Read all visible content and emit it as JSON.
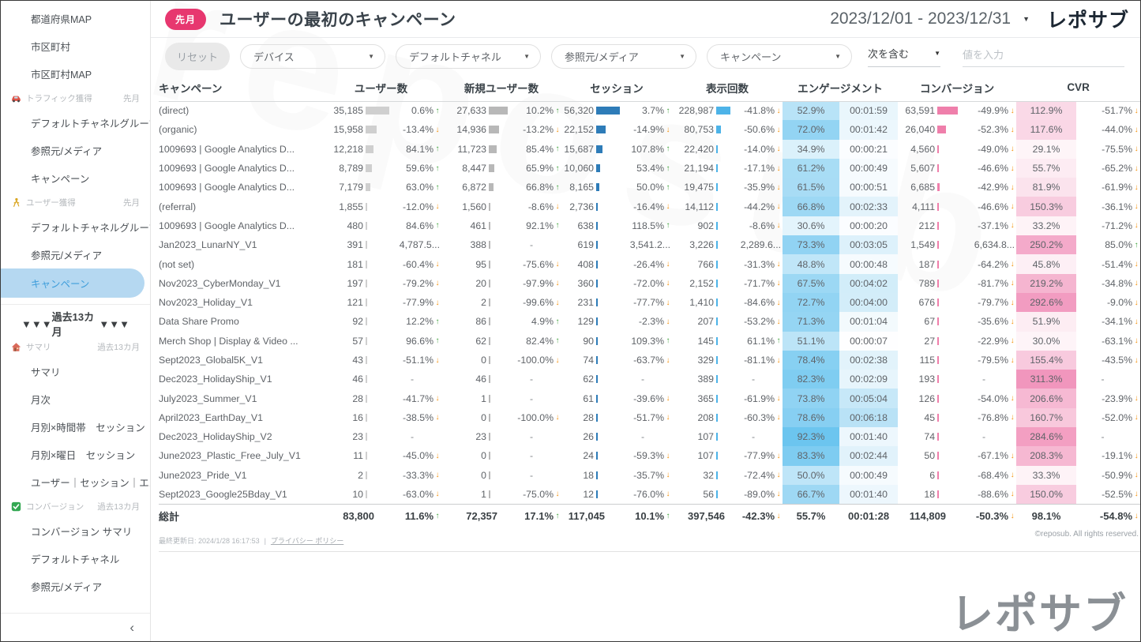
{
  "header": {
    "period_badge": "先月",
    "title": "ユーザーの最初のキャンペーン",
    "date_range": "2023/12/01 - 2023/12/31",
    "logo": "レポサブ"
  },
  "filters": {
    "reset_label": "リセット",
    "dropdowns": [
      "デバイス",
      "デフォルトチャネル",
      "参照元/メディア",
      "キャンペーン"
    ],
    "condition": "次を含む",
    "input_placeholder": "値を入力"
  },
  "sidebar": {
    "collapse": "‹",
    "items": [
      {
        "type": "item",
        "label": "都道府県MAP"
      },
      {
        "type": "item",
        "label": "市区町村"
      },
      {
        "type": "item",
        "label": "市区町村MAP"
      },
      {
        "type": "section",
        "icon": "car-icon",
        "label": "トラフィック獲得",
        "period": "先月"
      },
      {
        "type": "item",
        "label": "デフォルトチャネルグループ"
      },
      {
        "type": "item",
        "label": "参照元/メディア"
      },
      {
        "type": "item",
        "label": "キャンペーン"
      },
      {
        "type": "section",
        "icon": "person-icon",
        "label": "ユーザー獲得",
        "period": "先月"
      },
      {
        "type": "item",
        "label": "デフォルトチャネルグループ"
      },
      {
        "type": "item",
        "label": "参照元/メディア"
      },
      {
        "type": "item",
        "label": "キャンペーン",
        "selected": true
      },
      {
        "type": "divider"
      },
      {
        "type": "banner",
        "left": "▼▼▼",
        "label": "過去13カ月",
        "right": "▼▼▼"
      },
      {
        "type": "section",
        "icon": "house-icon",
        "label": "サマリ",
        "period": "過去13カ月"
      },
      {
        "type": "item",
        "label": "サマリ"
      },
      {
        "type": "item",
        "label": "月次"
      },
      {
        "type": "item",
        "label": "月別×時間帯　セッション"
      },
      {
        "type": "item",
        "label": "月別×曜日　セッション"
      },
      {
        "type": "item",
        "label": "ユーザー｜セッション｜エ..."
      },
      {
        "type": "section",
        "icon": "check-icon",
        "label": "コンバージョン",
        "period": "過去13カ月"
      },
      {
        "type": "item",
        "label": "コンバージョン サマリ"
      },
      {
        "type": "item",
        "label": "デフォルトチャネル"
      },
      {
        "type": "item",
        "label": "参照元/メディア"
      }
    ]
  },
  "table": {
    "columns": [
      {
        "label": "キャンペーン"
      },
      {
        "label": "ユーザー数"
      },
      {
        "label": "新規ユーザー数"
      },
      {
        "label": "セッション"
      },
      {
        "label": "表示回数"
      },
      {
        "label": "エンゲージメント"
      },
      {
        "label": "コンバージョン"
      },
      {
        "label": "CVR"
      }
    ],
    "rows": [
      {
        "campaign": "(direct)",
        "users": "35,185",
        "users_chg": "0.6%",
        "new_users": "27,633",
        "new_users_chg": "10.2%",
        "sessions": "56,320",
        "sessions_chg": "3.7%",
        "views": "228,987",
        "views_chg": "-41.8%",
        "eng_rate": "52.9%",
        "eng_time": "00:01:59",
        "conversions": "63,591",
        "conversions_chg": "-49.9%",
        "cvr": "112.9%",
        "cvr_chg": "-51.7%"
      },
      {
        "campaign": "(organic)",
        "users": "15,958",
        "users_chg": "-13.4%",
        "new_users": "14,936",
        "new_users_chg": "-13.2%",
        "sessions": "22,152",
        "sessions_chg": "-14.9%",
        "views": "80,753",
        "views_chg": "-50.6%",
        "eng_rate": "72.0%",
        "eng_time": "00:01:42",
        "conversions": "26,040",
        "conversions_chg": "-52.3%",
        "cvr": "117.6%",
        "cvr_chg": "-44.0%"
      },
      {
        "campaign": "1009693 | Google Analytics D...",
        "users": "12,218",
        "users_chg": "84.1%",
        "new_users": "11,723",
        "new_users_chg": "85.4%",
        "sessions": "15,687",
        "sessions_chg": "107.8%",
        "views": "22,420",
        "views_chg": "-14.0%",
        "eng_rate": "34.9%",
        "eng_time": "00:00:21",
        "conversions": "4,560",
        "conversions_chg": "-49.0%",
        "cvr": "29.1%",
        "cvr_chg": "-75.5%"
      },
      {
        "campaign": "1009693 | Google Analytics D...",
        "users": "8,789",
        "users_chg": "59.6%",
        "new_users": "8,447",
        "new_users_chg": "65.9%",
        "sessions": "10,060",
        "sessions_chg": "53.4%",
        "views": "21,194",
        "views_chg": "-17.1%",
        "eng_rate": "61.2%",
        "eng_time": "00:00:49",
        "conversions": "5,607",
        "conversions_chg": "-46.6%",
        "cvr": "55.7%",
        "cvr_chg": "-65.2%"
      },
      {
        "campaign": "1009693 | Google Analytics D...",
        "users": "7,179",
        "users_chg": "63.0%",
        "new_users": "6,872",
        "new_users_chg": "66.8%",
        "sessions": "8,165",
        "sessions_chg": "50.0%",
        "views": "19,475",
        "views_chg": "-35.9%",
        "eng_rate": "61.5%",
        "eng_time": "00:00:51",
        "conversions": "6,685",
        "conversions_chg": "-42.9%",
        "cvr": "81.9%",
        "cvr_chg": "-61.9%"
      },
      {
        "campaign": "(referral)",
        "users": "1,855",
        "users_chg": "-12.0%",
        "new_users": "1,560",
        "new_users_chg": "-8.6%",
        "sessions": "2,736",
        "sessions_chg": "-16.4%",
        "views": "14,112",
        "views_chg": "-44.2%",
        "eng_rate": "66.8%",
        "eng_time": "00:02:33",
        "conversions": "4,111",
        "conversions_chg": "-46.6%",
        "cvr": "150.3%",
        "cvr_chg": "-36.1%"
      },
      {
        "campaign": "1009693 | Google Analytics D...",
        "users": "480",
        "users_chg": "84.6%",
        "new_users": "461",
        "new_users_chg": "92.1%",
        "sessions": "638",
        "sessions_chg": "118.5%",
        "views": "902",
        "views_chg": "-8.6%",
        "eng_rate": "30.6%",
        "eng_time": "00:00:20",
        "conversions": "212",
        "conversions_chg": "-37.1%",
        "cvr": "33.2%",
        "cvr_chg": "-71.2%"
      },
      {
        "campaign": "Jan2023_LunarNY_V1",
        "users": "391",
        "users_chg": "4,787.5...",
        "new_users": "388",
        "new_users_chg": "-",
        "sessions": "619",
        "sessions_chg": "3,541.2...",
        "views": "3,226",
        "views_chg": "2,289.6...",
        "eng_rate": "73.3%",
        "eng_time": "00:03:05",
        "conversions": "1,549",
        "conversions_chg": "6,634.8...",
        "cvr": "250.2%",
        "cvr_chg": "85.0%"
      },
      {
        "campaign": "(not set)",
        "users": "181",
        "users_chg": "-60.4%",
        "new_users": "95",
        "new_users_chg": "-75.6%",
        "sessions": "408",
        "sessions_chg": "-26.4%",
        "views": "766",
        "views_chg": "-31.3%",
        "eng_rate": "48.8%",
        "eng_time": "00:00:48",
        "conversions": "187",
        "conversions_chg": "-64.2%",
        "cvr": "45.8%",
        "cvr_chg": "-51.4%"
      },
      {
        "campaign": "Nov2023_CyberMonday_V1",
        "users": "197",
        "users_chg": "-79.2%",
        "new_users": "20",
        "new_users_chg": "-97.9%",
        "sessions": "360",
        "sessions_chg": "-72.0%",
        "views": "2,152",
        "views_chg": "-71.7%",
        "eng_rate": "67.5%",
        "eng_time": "00:04:02",
        "conversions": "789",
        "conversions_chg": "-81.7%",
        "cvr": "219.2%",
        "cvr_chg": "-34.8%"
      },
      {
        "campaign": "Nov2023_Holiday_V1",
        "users": "121",
        "users_chg": "-77.9%",
        "new_users": "2",
        "new_users_chg": "-99.6%",
        "sessions": "231",
        "sessions_chg": "-77.7%",
        "views": "1,410",
        "views_chg": "-84.6%",
        "eng_rate": "72.7%",
        "eng_time": "00:04:00",
        "conversions": "676",
        "conversions_chg": "-79.7%",
        "cvr": "292.6%",
        "cvr_chg": "-9.0%"
      },
      {
        "campaign": "Data Share Promo",
        "users": "92",
        "users_chg": "12.2%",
        "new_users": "86",
        "new_users_chg": "4.9%",
        "sessions": "129",
        "sessions_chg": "-2.3%",
        "views": "207",
        "views_chg": "-53.2%",
        "eng_rate": "71.3%",
        "eng_time": "00:01:04",
        "conversions": "67",
        "conversions_chg": "-35.6%",
        "cvr": "51.9%",
        "cvr_chg": "-34.1%"
      },
      {
        "campaign": "Merch Shop | Display & Video ...",
        "users": "57",
        "users_chg": "96.6%",
        "new_users": "62",
        "new_users_chg": "82.4%",
        "sessions": "90",
        "sessions_chg": "109.3%",
        "views": "145",
        "views_chg": "61.1%",
        "eng_rate": "51.1%",
        "eng_time": "00:00:07",
        "conversions": "27",
        "conversions_chg": "-22.9%",
        "cvr": "30.0%",
        "cvr_chg": "-63.1%"
      },
      {
        "campaign": "Sept2023_Global5K_V1",
        "users": "43",
        "users_chg": "-51.1%",
        "new_users": "0",
        "new_users_chg": "-100.0%",
        "sessions": "74",
        "sessions_chg": "-63.7%",
        "views": "329",
        "views_chg": "-81.1%",
        "eng_rate": "78.4%",
        "eng_time": "00:02:38",
        "conversions": "115",
        "conversions_chg": "-79.5%",
        "cvr": "155.4%",
        "cvr_chg": "-43.5%"
      },
      {
        "campaign": "Dec2023_HolidayShip_V1",
        "users": "46",
        "users_chg": "-",
        "new_users": "46",
        "new_users_chg": "-",
        "sessions": "62",
        "sessions_chg": "-",
        "views": "389",
        "views_chg": "-",
        "eng_rate": "82.3%",
        "eng_time": "00:02:09",
        "conversions": "193",
        "conversions_chg": "-",
        "cvr": "311.3%",
        "cvr_chg": "-"
      },
      {
        "campaign": "July2023_Summer_V1",
        "users": "28",
        "users_chg": "-41.7%",
        "new_users": "1",
        "new_users_chg": "-",
        "sessions": "61",
        "sessions_chg": "-39.6%",
        "views": "365",
        "views_chg": "-61.9%",
        "eng_rate": "73.8%",
        "eng_time": "00:05:04",
        "conversions": "126",
        "conversions_chg": "-54.0%",
        "cvr": "206.6%",
        "cvr_chg": "-23.9%"
      },
      {
        "campaign": "April2023_EarthDay_V1",
        "users": "16",
        "users_chg": "-38.5%",
        "new_users": "0",
        "new_users_chg": "-100.0%",
        "sessions": "28",
        "sessions_chg": "-51.7%",
        "views": "208",
        "views_chg": "-60.3%",
        "eng_rate": "78.6%",
        "eng_time": "00:06:18",
        "conversions": "45",
        "conversions_chg": "-76.8%",
        "cvr": "160.7%",
        "cvr_chg": "-52.0%"
      },
      {
        "campaign": "Dec2023_HolidayShip_V2",
        "users": "23",
        "users_chg": "-",
        "new_users": "23",
        "new_users_chg": "-",
        "sessions": "26",
        "sessions_chg": "-",
        "views": "107",
        "views_chg": "-",
        "eng_rate": "92.3%",
        "eng_time": "00:01:40",
        "conversions": "74",
        "conversions_chg": "-",
        "cvr": "284.6%",
        "cvr_chg": "-"
      },
      {
        "campaign": "June2023_Plastic_Free_July_V1",
        "users": "11",
        "users_chg": "-45.0%",
        "new_users": "0",
        "new_users_chg": "-",
        "sessions": "24",
        "sessions_chg": "-59.3%",
        "views": "107",
        "views_chg": "-77.9%",
        "eng_rate": "83.3%",
        "eng_time": "00:02:44",
        "conversions": "50",
        "conversions_chg": "-67.1%",
        "cvr": "208.3%",
        "cvr_chg": "-19.1%"
      },
      {
        "campaign": "June2023_Pride_V1",
        "users": "2",
        "users_chg": "-33.3%",
        "new_users": "0",
        "new_users_chg": "-",
        "sessions": "18",
        "sessions_chg": "-35.7%",
        "views": "32",
        "views_chg": "-72.4%",
        "eng_rate": "50.0%",
        "eng_time": "00:00:49",
        "conversions": "6",
        "conversions_chg": "-68.4%",
        "cvr": "33.3%",
        "cvr_chg": "-50.9%"
      },
      {
        "campaign": "Sept2023_Google25Bday_V1",
        "users": "10",
        "users_chg": "-63.0%",
        "new_users": "1",
        "new_users_chg": "-75.0%",
        "sessions": "12",
        "sessions_chg": "-76.0%",
        "views": "56",
        "views_chg": "-89.0%",
        "eng_rate": "66.7%",
        "eng_time": "00:01:40",
        "conversions": "18",
        "conversions_chg": "-88.6%",
        "cvr": "150.0%",
        "cvr_chg": "-52.5%"
      }
    ],
    "total": {
      "campaign": "総計",
      "users": "83,800",
      "users_chg": "11.6%",
      "new_users": "72,357",
      "new_users_chg": "17.1%",
      "sessions": "117,045",
      "sessions_chg": "10.1%",
      "views": "397,546",
      "views_chg": "-42.3%",
      "eng_rate": "55.7%",
      "eng_time": "00:01:28",
      "conversions": "114,809",
      "conversions_chg": "-50.3%",
      "cvr": "98.1%",
      "cvr_chg": "-54.8%"
    }
  },
  "footer": {
    "last_updated": "最終更新日: 2024/1/28 16:17:53",
    "separator": "|",
    "privacy_link": "プライバシー ポリシー",
    "copyright": "©reposub. All rights reserved."
  },
  "watermark": {
    "logo": "レポサブ",
    "background_text": "reposub"
  },
  "colors": {
    "accent_pink": "#e7376f",
    "selected_item_bg": "#b5d8f1",
    "selected_item_text": "#3f9edb",
    "up": "#3fa33c",
    "down": "#f5920c",
    "bar_users": "#cfcfcf",
    "bar_new_users": "#b8b8b8",
    "bar_sessions": "#2e7cb8",
    "bar_views": "#4db3e8",
    "bar_conversions": "#ef7fab",
    "heat_eng_low": "#eef8fd",
    "heat_eng_high": "#67c3ee",
    "heat_time_low": "#ffffff",
    "heat_time_high": "#b9e2f6",
    "heat_cvr_low": "#fef6f9",
    "heat_cvr_high": "#f193bb"
  }
}
